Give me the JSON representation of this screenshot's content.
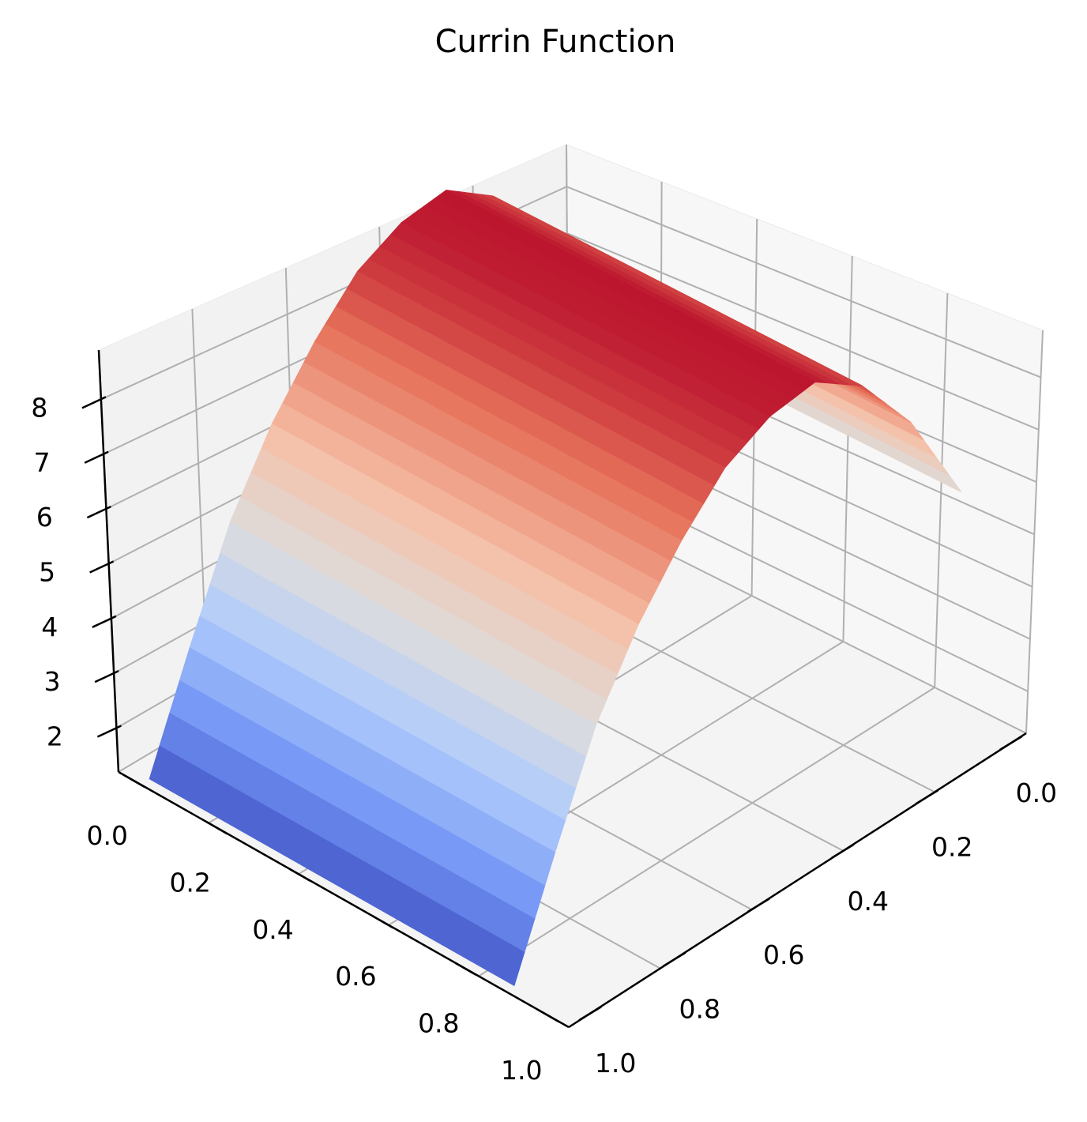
{
  "chart_data": {
    "type": "surface",
    "title": "Currin Function",
    "colormap": "coolwarm",
    "colormap_stops": [
      "#3b4cc0",
      "#7396f5",
      "#b0cbfc",
      "#dddcdc",
      "#f6bfa6",
      "#e57058",
      "#b40426"
    ],
    "x": {
      "ticks": [
        0.0,
        0.2,
        0.4,
        0.6,
        0.8,
        1.0
      ],
      "tick_labels": [
        "0.0",
        "0.2",
        "0.4",
        "0.6",
        "0.8",
        "1.0"
      ],
      "range": [
        0,
        1
      ]
    },
    "y": {
      "ticks": [
        0.0,
        0.2,
        0.4,
        0.6,
        0.8,
        1.0
      ],
      "tick_labels": [
        "0.0",
        "0.2",
        "0.4",
        "0.6",
        "0.8",
        "1.0"
      ],
      "range": [
        0,
        1
      ]
    },
    "z": {
      "ticks": [
        2,
        3,
        4,
        5,
        6,
        7,
        8
      ],
      "tick_labels": [
        "2",
        "3",
        "4",
        "5",
        "6",
        "7",
        "8"
      ],
      "range": [
        1.2,
        8.9
      ]
    },
    "surface_ridge": {
      "x_from_right_axis": [
        0.0,
        0.1,
        0.2,
        0.3,
        0.4,
        0.5,
        0.6,
        0.7,
        0.8,
        0.9,
        1.0
      ],
      "z_values": [
        5.1,
        6.9,
        8.1,
        8.7,
        8.6,
        8.2,
        7.4,
        6.4,
        5.1,
        3.3,
        1.4
      ]
    },
    "grid": true
  }
}
